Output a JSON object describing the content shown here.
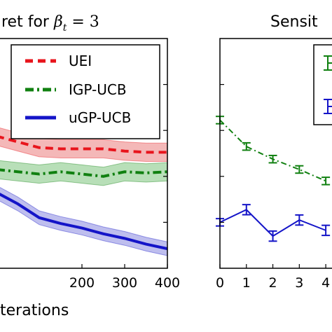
{
  "colors": {
    "uei": "#e8141c",
    "igp_ucb": "#108010",
    "ugp_ucb": "#1414c8",
    "uei_band": "#f0a0a0",
    "igp_band": "#a0d4a0",
    "ugp_band": "#a8a8e8"
  },
  "chart_data": [
    {
      "type": "line",
      "title_prefix": "ret for ",
      "title_math": "β",
      "title_sub": "t",
      "title_suffix": " = 3",
      "xlabel": "terations",
      "xlim": [
        0,
        400
      ],
      "ylim": [
        0,
        1
      ],
      "xticks": [
        "200",
        "300",
        "400"
      ],
      "xtick_values": [
        200,
        300,
        400
      ],
      "legend": {
        "placement": "top-right",
        "entries": [
          "UEI",
          "IGP-UCB",
          "uGP-UCB"
        ]
      },
      "x": [
        0,
        50,
        100,
        150,
        200,
        250,
        300,
        350,
        400
      ],
      "series": [
        {
          "name": "UEI",
          "style": "dashed",
          "color_key": "uei",
          "values": [
            0.575,
            0.55,
            0.525,
            0.52,
            0.52,
            0.52,
            0.51,
            0.505,
            0.505
          ],
          "band": 0.04
        },
        {
          "name": "IGP-UCB",
          "style": "dashdot",
          "color_key": "igp_ucb",
          "values": [
            0.43,
            0.42,
            0.41,
            0.42,
            0.41,
            0.4,
            0.42,
            0.415,
            0.42
          ],
          "band": 0.04
        },
        {
          "name": "uGP-UCB",
          "style": "solid",
          "color_key": "ugp_ucb",
          "values": [
            0.33,
            0.28,
            0.22,
            0.195,
            0.175,
            0.15,
            0.13,
            0.105,
            0.085
          ],
          "band": 0.03
        }
      ]
    },
    {
      "type": "line",
      "title": "Sensit",
      "xlim": [
        0,
        4.5
      ],
      "ylim": [
        0,
        1
      ],
      "xticks": [
        "0",
        "1",
        "2",
        "3",
        "4"
      ],
      "xtick_values": [
        0,
        1,
        2,
        3,
        4
      ],
      "legend": {
        "placement": "top-right"
      },
      "series": [
        {
          "style": "dashdot",
          "color_key": "igp_ucb",
          "x": [
            0,
            1,
            2,
            3,
            4
          ],
          "values": [
            0.645,
            0.53,
            0.475,
            0.43,
            0.38
          ],
          "err": [
            0.016,
            0.016,
            0.016,
            0.016,
            0.016
          ]
        },
        {
          "style": "solid",
          "color_key": "ugp_ucb",
          "x": [
            0,
            1,
            2,
            3,
            4
          ],
          "values": [
            0.2,
            0.255,
            0.14,
            0.21,
            0.165
          ],
          "err": [
            0.016,
            0.022,
            0.022,
            0.022,
            0.022
          ]
        }
      ]
    }
  ]
}
